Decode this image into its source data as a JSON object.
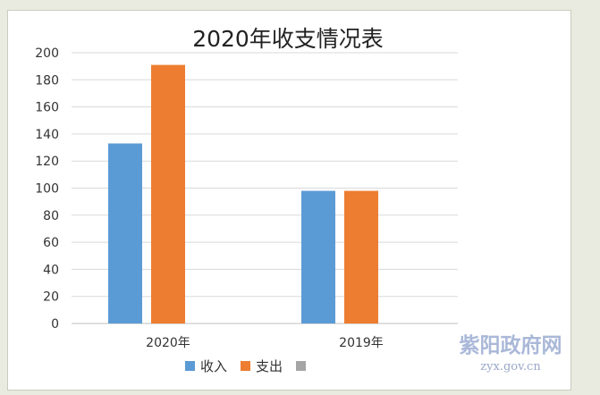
{
  "chart_data": {
    "type": "bar",
    "title": "2020年收支情况表",
    "categories": [
      "2020年",
      "2019年"
    ],
    "series": [
      {
        "name": "收入",
        "values": [
          133,
          98
        ],
        "color": "#5b9bd5"
      },
      {
        "name": "支出",
        "values": [
          191,
          98
        ],
        "color": "#ed7d31"
      },
      {
        "name": "",
        "values": [
          null,
          null
        ],
        "color": "#a5a5a5"
      }
    ],
    "yticks": [
      "0",
      "20",
      "40",
      "60",
      "80",
      "100",
      "120",
      "140",
      "160",
      "180",
      "200"
    ],
    "ylim": [
      0,
      200
    ],
    "xlabel": "",
    "ylabel": "",
    "grid": true,
    "legend": "bottom"
  },
  "watermark": {
    "text": "紫阳政府网",
    "url": "zyx.gov.cn"
  }
}
